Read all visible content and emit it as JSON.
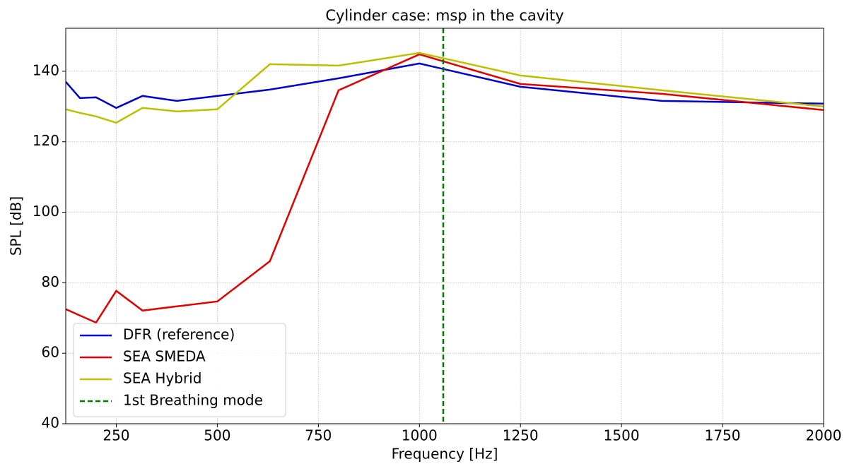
{
  "chart_data": {
    "type": "line",
    "title": "Cylinder case: msp in the cavity",
    "x_label": "Frequency [Hz]",
    "y_label": "SPL [dB]",
    "x": [
      125,
      160,
      200,
      250,
      315,
      400,
      500,
      630,
      800,
      1000,
      1250,
      1600,
      2000
    ],
    "series": [
      {
        "name": "DFR (reference)",
        "color": "#0000cc",
        "values": [
          137,
          132.4,
          132.6,
          129.6,
          133,
          131.6,
          133,
          134.8,
          138,
          142.2,
          135.6,
          131.6,
          130.8
        ]
      },
      {
        "name": "SEA SMEDA",
        "color": "#e00000",
        "values": [
          72.5,
          70.7,
          68.7,
          77.7,
          72.1,
          73.3,
          74.7,
          86.1,
          134.6,
          144.8,
          136.4,
          133.6,
          129
        ]
      },
      {
        "name": "SEA Hybrid",
        "color": "#bfbf00",
        "values": [
          129.2,
          128.2,
          127.2,
          125.4,
          129.6,
          128.6,
          129.2,
          142,
          141.6,
          145.2,
          138.8,
          134.6,
          130
        ]
      }
    ],
    "vlines": [
      {
        "name": "1st Breathing mode",
        "color": "#007700",
        "x": 1059
      }
    ],
    "xlim": [
      125,
      2000
    ],
    "xticks": [
      250,
      500,
      750,
      1000,
      1250,
      1500,
      1750,
      2000
    ],
    "ylim": [
      40,
      152.2
    ],
    "yticks": [
      40,
      60,
      80,
      100,
      120,
      140
    ],
    "grid": true,
    "legend": "lower-left"
  }
}
